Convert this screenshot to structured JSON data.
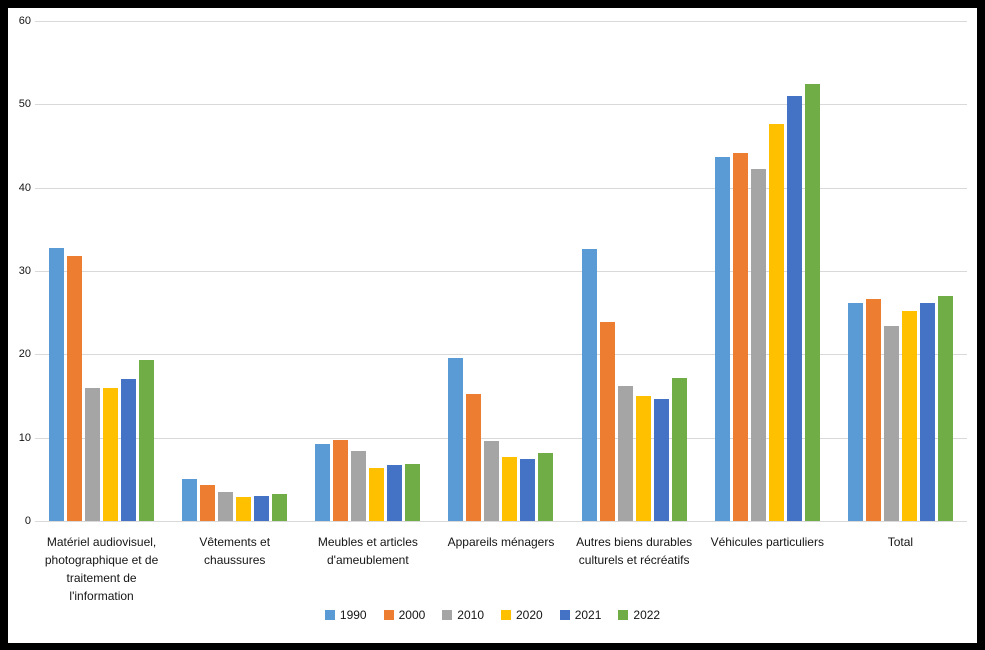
{
  "chart_data": {
    "type": "bar",
    "title": "",
    "xlabel": "",
    "ylabel": "",
    "ylim": [
      0,
      60
    ],
    "ytick_interval": 10,
    "yticks": [
      "0",
      "10",
      "20",
      "30",
      "40",
      "50",
      "60"
    ],
    "grid": true,
    "legend_position": "bottom",
    "categories": [
      "Matériel audiovisuel, photographique et de traitement de l'information",
      "Vêtements et chaussures",
      "Meubles et articles d'ameublement",
      "Appareils ménagers",
      "Autres biens durables culturels et récréatifs",
      "Véhicules particuliers",
      "Total"
    ],
    "series": [
      {
        "name": "1990",
        "color": "#5B9BD5",
        "values": [
          32.8,
          5.1,
          9.2,
          19.6,
          32.6,
          43.7,
          26.2
        ]
      },
      {
        "name": "2000",
        "color": "#ED7D31",
        "values": [
          31.8,
          4.3,
          9.7,
          15.3,
          23.9,
          44.2,
          26.7
        ]
      },
      {
        "name": "2010",
        "color": "#A5A5A5",
        "values": [
          16.0,
          3.5,
          8.4,
          9.6,
          16.2,
          42.3,
          23.4
        ]
      },
      {
        "name": "2020",
        "color": "#FFC000",
        "values": [
          16.0,
          2.9,
          6.4,
          7.7,
          15.0,
          47.7,
          25.2
        ]
      },
      {
        "name": "2021",
        "color": "#4472C4",
        "values": [
          17.1,
          3.0,
          6.7,
          7.4,
          14.7,
          51.0,
          26.2
        ]
      },
      {
        "name": "2022",
        "color": "#70AD47",
        "values": [
          19.3,
          3.2,
          6.9,
          8.2,
          17.2,
          52.5,
          27.0
        ]
      }
    ]
  },
  "colors": {
    "frame_border": "#000000",
    "background": "#FFFFFF",
    "gridline": "#D9D9D9",
    "text": "#151515"
  }
}
